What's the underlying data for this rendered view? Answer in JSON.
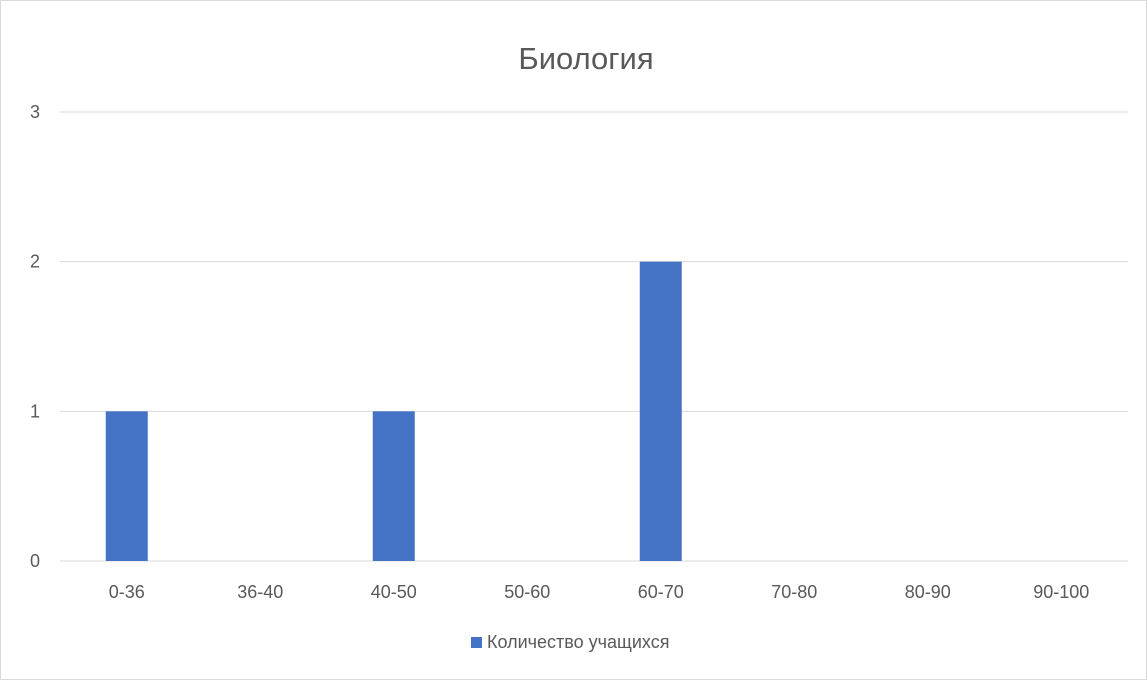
{
  "chart_data": {
    "type": "bar",
    "title": "Биология",
    "categories": [
      "0-36",
      "36-40",
      "40-50",
      "50-60",
      "60-70",
      "70-80",
      "80-90",
      "90-100"
    ],
    "series": [
      {
        "name": "Количество учащихся",
        "values": [
          1,
          0,
          1,
          0,
          2,
          0,
          0,
          0
        ],
        "color": "#4472c4"
      }
    ],
    "ylim": [
      0,
      3
    ],
    "yticks": [
      "0",
      "1",
      "2",
      "3"
    ],
    "grid": true,
    "legend_position": "bottom"
  }
}
